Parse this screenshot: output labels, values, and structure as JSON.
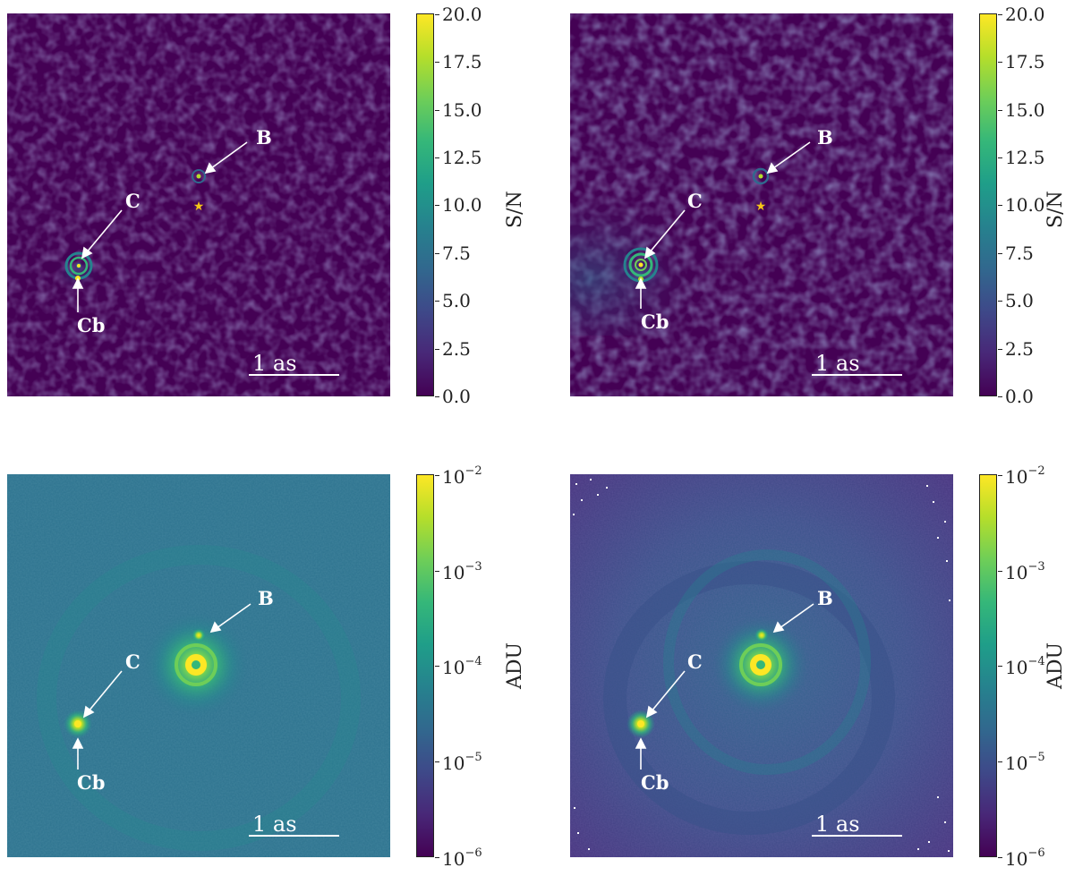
{
  "panels": [
    {
      "id": "top-left",
      "type": "snr",
      "labels": {
        "B": "B",
        "C": "C",
        "Cb": "Cb"
      },
      "scale_bar": "1 as",
      "colorbar": {
        "label": "S/N",
        "ticks": [
          "0.0",
          "2.5",
          "5.0",
          "7.5",
          "10.0",
          "12.5",
          "15.0",
          "17.5",
          "20.0"
        ]
      }
    },
    {
      "id": "top-right",
      "type": "snr",
      "labels": {
        "B": "B",
        "C": "C",
        "Cb": "Cb"
      },
      "scale_bar": "1 as",
      "colorbar": {
        "label": "S/N",
        "ticks": [
          "0.0",
          "2.5",
          "5.0",
          "7.5",
          "10.0",
          "12.5",
          "15.0",
          "17.5",
          "20.0"
        ]
      }
    },
    {
      "id": "bottom-left",
      "type": "flux",
      "labels": {
        "B": "B",
        "C": "C",
        "Cb": "Cb"
      },
      "scale_bar": "1 as",
      "colorbar": {
        "label": "ADU",
        "ticks": [
          {
            "base": "10",
            "exp": "−6"
          },
          {
            "base": "10",
            "exp": "−5"
          },
          {
            "base": "10",
            "exp": "−4"
          },
          {
            "base": "10",
            "exp": "−3"
          },
          {
            "base": "10",
            "exp": "−2"
          }
        ]
      }
    },
    {
      "id": "bottom-right",
      "type": "flux",
      "labels": {
        "B": "B",
        "C": "C",
        "Cb": "Cb"
      },
      "scale_bar": "1 as",
      "colorbar": {
        "label": "ADU",
        "ticks": [
          {
            "base": "10",
            "exp": "−6"
          },
          {
            "base": "10",
            "exp": "−5"
          },
          {
            "base": "10",
            "exp": "−4"
          },
          {
            "base": "10",
            "exp": "−3"
          },
          {
            "base": "10",
            "exp": "−2"
          }
        ]
      }
    }
  ],
  "colors": {
    "viridis_dark": "#440154",
    "viridis_teal": "#21918c",
    "viridis_yellow": "#fde725",
    "star_marker": "#f5c518"
  }
}
